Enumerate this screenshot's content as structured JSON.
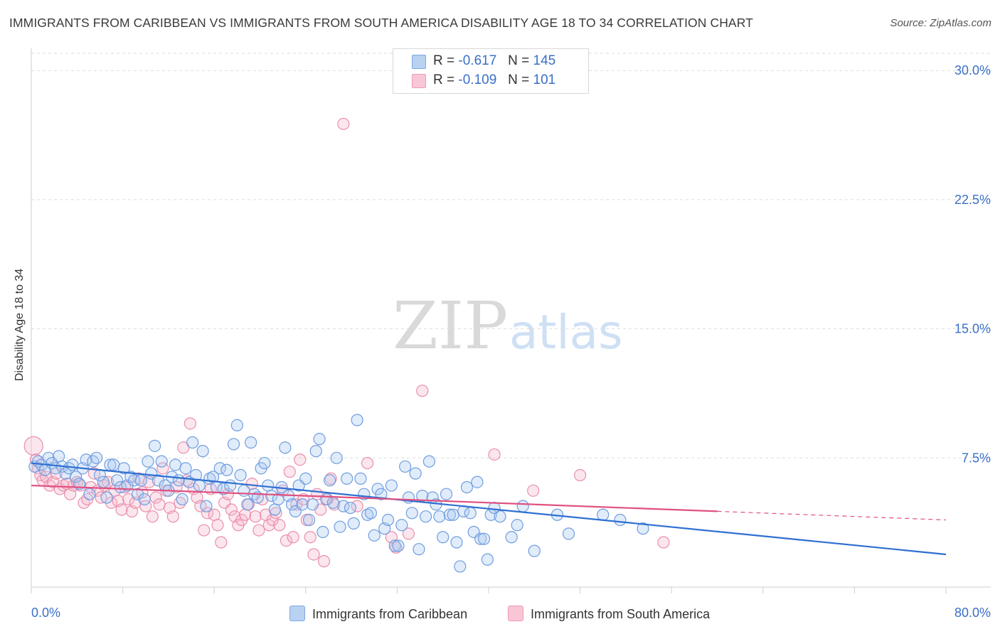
{
  "header": {
    "title": "IMMIGRANTS FROM CARIBBEAN VS IMMIGRANTS FROM SOUTH AMERICA DISABILITY AGE 18 TO 34 CORRELATION CHART",
    "source": "Source: ZipAtlas.com"
  },
  "legend": {
    "r_label": "R =",
    "n_label": "N =",
    "series1": {
      "r": "-0.617",
      "n": "145"
    },
    "series2": {
      "r": "-0.109",
      "n": "101"
    }
  },
  "watermark": {
    "zip": "ZIP",
    "atlas": "atlas"
  },
  "colors": {
    "caribbean_fill": "#a9c8f0",
    "caribbean_stroke": "#6f9de0",
    "caribbean_line": "#2e6fd0",
    "south_america_fill": "#f6b8cb",
    "south_america_stroke": "#ea8fac",
    "south_america_line": "#e05080",
    "axis_text": "#3b6fc6",
    "grid": "#dddddd"
  },
  "chart_data": {
    "type": "scatter",
    "title": "IMMIGRANTS FROM CARIBBEAN VS IMMIGRANTS FROM SOUTH AMERICA DISABILITY AGE 18 TO 34 CORRELATION CHART",
    "xlabel": "",
    "ylabel": "Disability Age 18 to 34",
    "xlim": [
      0,
      80
    ],
    "ylim": [
      0,
      31
    ],
    "x_tick_labels": [
      "0.0%",
      "80.0%"
    ],
    "y_ticks": [
      7.5,
      15.0,
      22.5,
      30.0
    ],
    "y_tick_labels": [
      "7.5%",
      "15.0%",
      "22.5%",
      "30.0%"
    ],
    "grid": true,
    "legend_position": "top-center",
    "series": [
      {
        "name": "Immigrants from Caribbean",
        "trend": {
          "x": [
            0,
            80
          ],
          "y": [
            7.2,
            1.9
          ],
          "dashed_from": null
        },
        "points": [
          [
            0.3,
            7.0
          ],
          [
            0.6,
            7.3
          ],
          [
            0.9,
            7.1
          ],
          [
            1.2,
            6.8
          ],
          [
            1.5,
            7.5
          ],
          [
            1.8,
            7.2
          ],
          [
            2.1,
            6.9
          ],
          [
            2.4,
            7.6
          ],
          [
            2.7,
            7.0
          ],
          [
            3.0,
            6.6
          ],
          [
            3.3,
            6.9
          ],
          [
            3.6,
            7.1
          ],
          [
            3.9,
            6.4
          ],
          [
            4.2,
            6.0
          ],
          [
            4.5,
            6.9
          ],
          [
            4.8,
            7.4
          ],
          [
            5.1,
            5.4
          ],
          [
            5.4,
            7.3
          ],
          [
            5.7,
            7.5
          ],
          [
            6.0,
            6.5
          ],
          [
            6.3,
            6.1
          ],
          [
            6.6,
            5.2
          ],
          [
            6.9,
            7.1
          ],
          [
            7.2,
            7.1
          ],
          [
            7.5,
            6.2
          ],
          [
            7.8,
            5.8
          ],
          [
            8.1,
            6.9
          ],
          [
            8.4,
            5.9
          ],
          [
            8.7,
            6.4
          ],
          [
            9.0,
            6.2
          ],
          [
            9.3,
            5.4
          ],
          [
            9.6,
            6.2
          ],
          [
            9.9,
            5.1
          ],
          [
            10.2,
            7.3
          ],
          [
            10.5,
            6.6
          ],
          [
            10.8,
            8.2
          ],
          [
            11.1,
            6.2
          ],
          [
            11.4,
            7.3
          ],
          [
            11.7,
            5.9
          ],
          [
            12.0,
            5.6
          ],
          [
            12.3,
            6.4
          ],
          [
            12.6,
            7.1
          ],
          [
            12.9,
            6.2
          ],
          [
            13.2,
            5.1
          ],
          [
            13.5,
            6.9
          ],
          [
            13.8,
            6.1
          ],
          [
            14.1,
            8.4
          ],
          [
            14.4,
            6.5
          ],
          [
            14.7,
            5.9
          ],
          [
            15.0,
            7.9
          ],
          [
            15.3,
            4.7
          ],
          [
            15.6,
            6.3
          ],
          [
            15.9,
            6.4
          ],
          [
            16.2,
            5.8
          ],
          [
            16.5,
            6.9
          ],
          [
            16.8,
            5.7
          ],
          [
            17.1,
            6.8
          ],
          [
            17.4,
            5.9
          ],
          [
            17.7,
            8.3
          ],
          [
            18.0,
            9.4
          ],
          [
            18.3,
            6.5
          ],
          [
            18.6,
            5.6
          ],
          [
            18.9,
            4.8
          ],
          [
            19.2,
            8.4
          ],
          [
            19.5,
            5.4
          ],
          [
            19.8,
            5.2
          ],
          [
            20.1,
            6.9
          ],
          [
            20.4,
            7.2
          ],
          [
            20.7,
            5.9
          ],
          [
            21.0,
            5.3
          ],
          [
            21.3,
            4.5
          ],
          [
            21.6,
            5.1
          ],
          [
            21.9,
            5.8
          ],
          [
            22.2,
            8.1
          ],
          [
            22.5,
            5.3
          ],
          [
            22.8,
            4.8
          ],
          [
            23.1,
            4.4
          ],
          [
            23.4,
            5.9
          ],
          [
            23.7,
            4.8
          ],
          [
            24.0,
            6.3
          ],
          [
            24.3,
            3.9
          ],
          [
            24.6,
            4.8
          ],
          [
            24.9,
            7.9
          ],
          [
            25.2,
            8.6
          ],
          [
            25.5,
            3.2
          ],
          [
            25.8,
            5.1
          ],
          [
            26.1,
            6.2
          ],
          [
            26.4,
            4.9
          ],
          [
            26.7,
            7.5
          ],
          [
            27.0,
            3.5
          ],
          [
            27.3,
            4.7
          ],
          [
            27.6,
            6.3
          ],
          [
            27.9,
            4.6
          ],
          [
            28.2,
            3.7
          ],
          [
            28.5,
            9.7
          ],
          [
            28.8,
            6.3
          ],
          [
            29.1,
            5.4
          ],
          [
            29.4,
            4.2
          ],
          [
            29.7,
            4.3
          ],
          [
            30.0,
            3.0
          ],
          [
            30.3,
            5.7
          ],
          [
            30.6,
            5.4
          ],
          [
            30.9,
            3.4
          ],
          [
            31.2,
            3.9
          ],
          [
            31.5,
            5.9
          ],
          [
            31.8,
            2.4
          ],
          [
            32.1,
            2.4
          ],
          [
            32.4,
            3.6
          ],
          [
            32.7,
            7.0
          ],
          [
            33.0,
            5.2
          ],
          [
            33.3,
            4.3
          ],
          [
            33.6,
            6.6
          ],
          [
            33.9,
            2.2
          ],
          [
            34.2,
            5.3
          ],
          [
            34.5,
            4.1
          ],
          [
            34.8,
            7.3
          ],
          [
            35.1,
            5.2
          ],
          [
            35.4,
            4.8
          ],
          [
            35.7,
            4.1
          ],
          [
            36.0,
            2.9
          ],
          [
            36.3,
            5.4
          ],
          [
            36.6,
            4.2
          ],
          [
            36.9,
            4.2
          ],
          [
            37.2,
            2.6
          ],
          [
            37.5,
            1.2
          ],
          [
            37.8,
            4.4
          ],
          [
            38.1,
            5.8
          ],
          [
            38.4,
            4.3
          ],
          [
            38.7,
            3.2
          ],
          [
            39.0,
            6.1
          ],
          [
            39.3,
            2.8
          ],
          [
            39.6,
            2.8
          ],
          [
            39.9,
            1.6
          ],
          [
            40.2,
            4.2
          ],
          [
            40.5,
            4.6
          ],
          [
            41.0,
            4.1
          ],
          [
            42.0,
            2.9
          ],
          [
            42.5,
            3.6
          ],
          [
            43.0,
            4.7
          ],
          [
            44.0,
            2.1
          ],
          [
            46.0,
            4.2
          ],
          [
            47.0,
            3.1
          ],
          [
            50.0,
            4.2
          ],
          [
            51.5,
            3.9
          ],
          [
            53.5,
            3.4
          ]
        ]
      },
      {
        "name": "Immigrants from South America",
        "trend": {
          "x": [
            0,
            80
          ],
          "y": [
            5.9,
            3.9
          ],
          "dashed_from": 60
        },
        "points": [
          [
            0.2,
            8.2
          ],
          [
            0.4,
            7.4
          ],
          [
            0.6,
            6.9
          ],
          [
            0.8,
            6.5
          ],
          [
            1.0,
            6.2
          ],
          [
            1.3,
            6.4
          ],
          [
            1.6,
            5.9
          ],
          [
            1.9,
            6.1
          ],
          [
            2.2,
            6.6
          ],
          [
            2.5,
            5.7
          ],
          [
            2.8,
            5.9
          ],
          [
            3.1,
            6.0
          ],
          [
            3.4,
            5.4
          ],
          [
            3.7,
            5.9
          ],
          [
            4.0,
            6.1
          ],
          [
            4.3,
            5.9
          ],
          [
            4.6,
            4.9
          ],
          [
            4.9,
            5.1
          ],
          [
            5.2,
            5.8
          ],
          [
            5.5,
            6.6
          ],
          [
            5.8,
            5.6
          ],
          [
            6.1,
            5.2
          ],
          [
            6.4,
            5.9
          ],
          [
            6.7,
            6.1
          ],
          [
            7.0,
            4.9
          ],
          [
            7.3,
            5.6
          ],
          [
            7.6,
            5.0
          ],
          [
            7.9,
            4.5
          ],
          [
            8.2,
            5.8
          ],
          [
            8.5,
            5.1
          ],
          [
            8.8,
            4.4
          ],
          [
            9.1,
            4.9
          ],
          [
            9.4,
            6.3
          ],
          [
            9.7,
            5.5
          ],
          [
            10.0,
            4.7
          ],
          [
            10.3,
            6.1
          ],
          [
            10.6,
            4.1
          ],
          [
            10.9,
            5.2
          ],
          [
            11.2,
            4.8
          ],
          [
            11.5,
            6.9
          ],
          [
            11.8,
            5.6
          ],
          [
            12.1,
            4.6
          ],
          [
            12.4,
            4.1
          ],
          [
            12.7,
            5.8
          ],
          [
            13.0,
            4.9
          ],
          [
            13.3,
            8.1
          ],
          [
            13.6,
            6.2
          ],
          [
            13.9,
            9.5
          ],
          [
            14.2,
            5.7
          ],
          [
            14.5,
            5.2
          ],
          [
            14.8,
            4.7
          ],
          [
            15.1,
            3.3
          ],
          [
            15.4,
            4.3
          ],
          [
            15.7,
            5.7
          ],
          [
            16.0,
            4.2
          ],
          [
            16.3,
            3.6
          ],
          [
            16.6,
            2.6
          ],
          [
            16.9,
            4.9
          ],
          [
            17.2,
            5.4
          ],
          [
            17.5,
            4.5
          ],
          [
            17.8,
            4.1
          ],
          [
            18.1,
            3.6
          ],
          [
            18.4,
            3.9
          ],
          [
            18.7,
            4.2
          ],
          [
            19.0,
            4.8
          ],
          [
            19.3,
            6.0
          ],
          [
            19.6,
            4.1
          ],
          [
            19.9,
            3.3
          ],
          [
            20.2,
            5.1
          ],
          [
            20.5,
            4.2
          ],
          [
            20.8,
            3.6
          ],
          [
            21.1,
            3.9
          ],
          [
            21.4,
            4.3
          ],
          [
            21.7,
            3.6
          ],
          [
            22.0,
            5.6
          ],
          [
            22.3,
            2.7
          ],
          [
            22.6,
            6.7
          ],
          [
            22.9,
            2.9
          ],
          [
            23.2,
            4.8
          ],
          [
            23.5,
            7.4
          ],
          [
            23.8,
            5.1
          ],
          [
            24.1,
            3.9
          ],
          [
            24.4,
            2.9
          ],
          [
            24.7,
            1.9
          ],
          [
            25.0,
            5.4
          ],
          [
            25.3,
            4.5
          ],
          [
            25.6,
            1.5
          ],
          [
            25.9,
            5.1
          ],
          [
            26.2,
            6.3
          ],
          [
            26.5,
            4.8
          ],
          [
            27.3,
            26.9
          ],
          [
            28.5,
            4.7
          ],
          [
            29.4,
            7.2
          ],
          [
            31.5,
            2.9
          ],
          [
            31.9,
            2.3
          ],
          [
            33.0,
            3.1
          ],
          [
            34.2,
            11.4
          ],
          [
            40.5,
            7.7
          ],
          [
            43.9,
            5.6
          ],
          [
            48.0,
            6.5
          ],
          [
            55.3,
            2.6
          ]
        ]
      }
    ]
  },
  "bottom_legend": {
    "series1": "Immigrants from Caribbean",
    "series2": "Immigrants from South America"
  }
}
